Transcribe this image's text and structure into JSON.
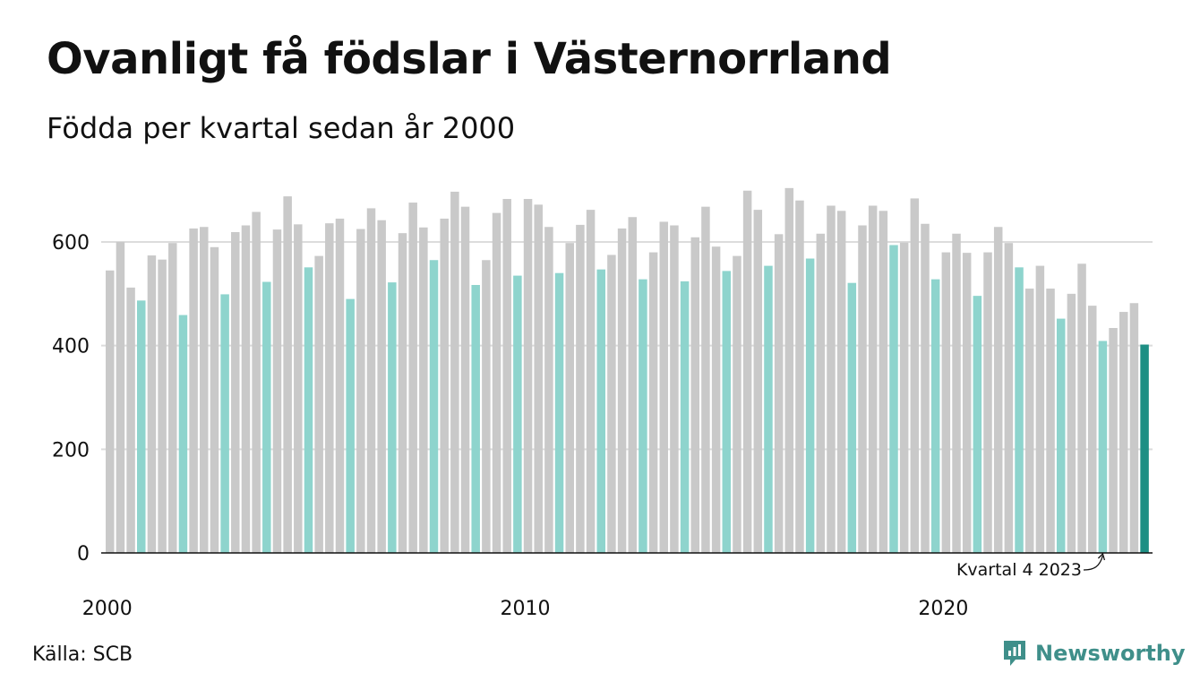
{
  "title": "Ovanligt få födslar i Västernorrland",
  "subtitle": "Födda per kvartal sedan år 2000",
  "source": "Källa: SCB",
  "brand": {
    "name": "Newsworthy",
    "icon": "newsworthy-logo-icon"
  },
  "colors": {
    "q1_to_q3": "#c9c9c9",
    "q4": "#8ed4cd",
    "latest": "#1e8f84",
    "axis": "#111111",
    "grid": "#dcdcdc",
    "brand": "#3f8f8a"
  },
  "chart_data": {
    "type": "bar",
    "title": "Ovanligt få födslar i Västernorrland",
    "subtitle": "Födda per kvartal sedan år 2000",
    "ylim": [
      0,
      720
    ],
    "yticks": [
      0,
      200,
      400,
      600
    ],
    "ytick_labels": [
      "0",
      "200",
      "400",
      "600"
    ],
    "xtick_labels": [
      {
        "label": "2000",
        "year": 2000
      },
      {
        "label": "2010",
        "year": 2010
      },
      {
        "label": "2020",
        "year": 2020
      }
    ],
    "grid": "horizontal at 600",
    "annotation": {
      "text": "Kvartal 4 2023",
      "target": "2023 Q4"
    },
    "series": [
      {
        "values": [
          545,
          600,
          512,
          487,
          574,
          566,
          598,
          459,
          626,
          629,
          590,
          499,
          619,
          632,
          658,
          523,
          624,
          688,
          634,
          551,
          573,
          636,
          645,
          490,
          625,
          665,
          642,
          522,
          617,
          676,
          628,
          565,
          645,
          697,
          668,
          517,
          565,
          656,
          683,
          535,
          683,
          672,
          629,
          540,
          598,
          633,
          662,
          547,
          575,
          626,
          648,
          528,
          580,
          639,
          632,
          524,
          609,
          668,
          591,
          544,
          573,
          699,
          662,
          554,
          615,
          704,
          680,
          568,
          616,
          670,
          660,
          521,
          632,
          670,
          660,
          594,
          599,
          684,
          635,
          528,
          580,
          616,
          579,
          496,
          580,
          629,
          598,
          551,
          510,
          554,
          510,
          452,
          500,
          558,
          477,
          409,
          434,
          465,
          482,
          402
        ]
      }
    ],
    "periods": [
      "2000 Q1",
      "2000 Q2",
      "2000 Q3",
      "2000 Q4",
      "2001 Q1",
      "2001 Q2",
      "2001 Q3",
      "2001 Q4",
      "2002 Q1",
      "2002 Q2",
      "2002 Q3",
      "2002 Q4",
      "2003 Q1",
      "2003 Q2",
      "2003 Q3",
      "2003 Q4",
      "2004 Q1",
      "2004 Q2",
      "2004 Q3",
      "2004 Q4",
      "2005 Q1",
      "2005 Q2",
      "2005 Q3",
      "2005 Q4",
      "2006 Q1",
      "2006 Q2",
      "2006 Q3",
      "2006 Q4",
      "2007 Q1",
      "2007 Q2",
      "2007 Q3",
      "2007 Q4",
      "2008 Q1",
      "2008 Q2",
      "2008 Q3",
      "2008 Q4",
      "2009 Q1",
      "2009 Q2",
      "2009 Q3",
      "2009 Q4",
      "2010 Q1",
      "2010 Q2",
      "2010 Q3",
      "2010 Q4",
      "2011 Q1",
      "2011 Q2",
      "2011 Q3",
      "2011 Q4",
      "2012 Q1",
      "2012 Q2",
      "2012 Q3",
      "2012 Q4",
      "2013 Q1",
      "2013 Q2",
      "2013 Q3",
      "2013 Q4",
      "2014 Q1",
      "2014 Q2",
      "2014 Q3",
      "2014 Q4",
      "2015 Q1",
      "2015 Q2",
      "2015 Q3",
      "2015 Q4",
      "2016 Q1",
      "2016 Q2",
      "2016 Q3",
      "2016 Q4",
      "2017 Q1",
      "2017 Q2",
      "2017 Q3",
      "2017 Q4",
      "2018 Q1",
      "2018 Q2",
      "2018 Q3",
      "2018 Q4",
      "2019 Q1",
      "2019 Q2",
      "2019 Q3",
      "2019 Q4",
      "2020 Q1",
      "2020 Q2",
      "2020 Q3",
      "2020 Q4",
      "2021 Q1",
      "2021 Q2",
      "2021 Q3",
      "2021 Q4",
      "2022 Q1",
      "2022 Q2",
      "2022 Q3",
      "2022 Q4",
      "2023 Q1",
      "2023 Q2",
      "2023 Q3",
      "2023 Q4",
      "2024 Q1",
      "2024 Q2",
      "2024 Q3",
      "2024 Q4"
    ],
    "highlight_rule": "Q4 bars teal, last bar dark teal"
  }
}
